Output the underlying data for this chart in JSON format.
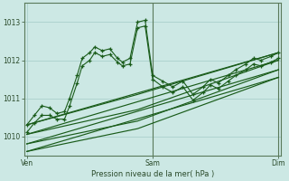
{
  "xlabel": "Pression niveau de la mer( hPa )",
  "bg_color": "#cce8e4",
  "grid_color": "#aacfcb",
  "line_color": "#1a5c1a",
  "marker": "+",
  "xtick_labels": [
    "Ven",
    "Sam",
    "Dim"
  ],
  "xtick_positions": [
    0.0,
    0.5,
    1.0
  ],
  "ytick_labels": [
    "1010",
    "1011",
    "1012",
    "1013"
  ],
  "ytick_positions": [
    1010,
    1011,
    1012,
    1013
  ],
  "ylim": [
    1009.5,
    1013.5
  ],
  "xlim": [
    -0.01,
    1.01
  ],
  "noisy_x": [
    0.0,
    0.03,
    0.06,
    0.09,
    0.12,
    0.15,
    0.17,
    0.2,
    0.22,
    0.25,
    0.27,
    0.3,
    0.33,
    0.36,
    0.38,
    0.41,
    0.44,
    0.47,
    0.5,
    0.54,
    0.58,
    0.62,
    0.66,
    0.7,
    0.73,
    0.76,
    0.8,
    0.83,
    0.87,
    0.9,
    0.93,
    0.97,
    1.0
  ],
  "noisy_y1": [
    1010.3,
    1010.55,
    1010.8,
    1010.75,
    1010.6,
    1010.65,
    1011.0,
    1011.6,
    1012.05,
    1012.2,
    1012.35,
    1012.25,
    1012.3,
    1012.05,
    1011.95,
    1012.05,
    1013.0,
    1013.05,
    1011.6,
    1011.45,
    1011.3,
    1011.45,
    1011.1,
    1011.3,
    1011.5,
    1011.4,
    1011.6,
    1011.75,
    1011.9,
    1012.05,
    1012.0,
    1012.1,
    1012.2
  ],
  "noisy_y2": [
    1010.1,
    1010.35,
    1010.55,
    1010.55,
    1010.45,
    1010.45,
    1010.8,
    1011.4,
    1011.85,
    1012.0,
    1012.2,
    1012.1,
    1012.15,
    1011.95,
    1011.85,
    1011.9,
    1012.85,
    1012.9,
    1011.5,
    1011.3,
    1011.15,
    1011.3,
    1010.95,
    1011.15,
    1011.35,
    1011.25,
    1011.45,
    1011.6,
    1011.75,
    1011.9,
    1011.85,
    1011.95,
    1012.05
  ],
  "trend_lines": [
    {
      "x": [
        0.0,
        1.0
      ],
      "y": [
        1010.3,
        1012.2
      ]
    },
    {
      "x": [
        0.0,
        1.0
      ],
      "y": [
        1010.05,
        1012.0
      ]
    },
    {
      "x": [
        0.0,
        1.0
      ],
      "y": [
        1009.8,
        1011.75
      ]
    },
    {
      "x": [
        0.0,
        1.0
      ],
      "y": [
        1009.6,
        1011.55
      ]
    }
  ],
  "envelope_lines": [
    {
      "x": [
        0.0,
        0.44,
        1.0
      ],
      "y": [
        1010.3,
        1011.1,
        1012.2
      ]
    },
    {
      "x": [
        0.0,
        0.44,
        1.0
      ],
      "y": [
        1010.05,
        1010.7,
        1012.0
      ]
    },
    {
      "x": [
        0.0,
        0.44,
        1.0
      ],
      "y": [
        1009.8,
        1010.4,
        1011.75
      ]
    },
    {
      "x": [
        0.0,
        0.44,
        1.0
      ],
      "y": [
        1009.6,
        1010.2,
        1011.55
      ]
    }
  ]
}
